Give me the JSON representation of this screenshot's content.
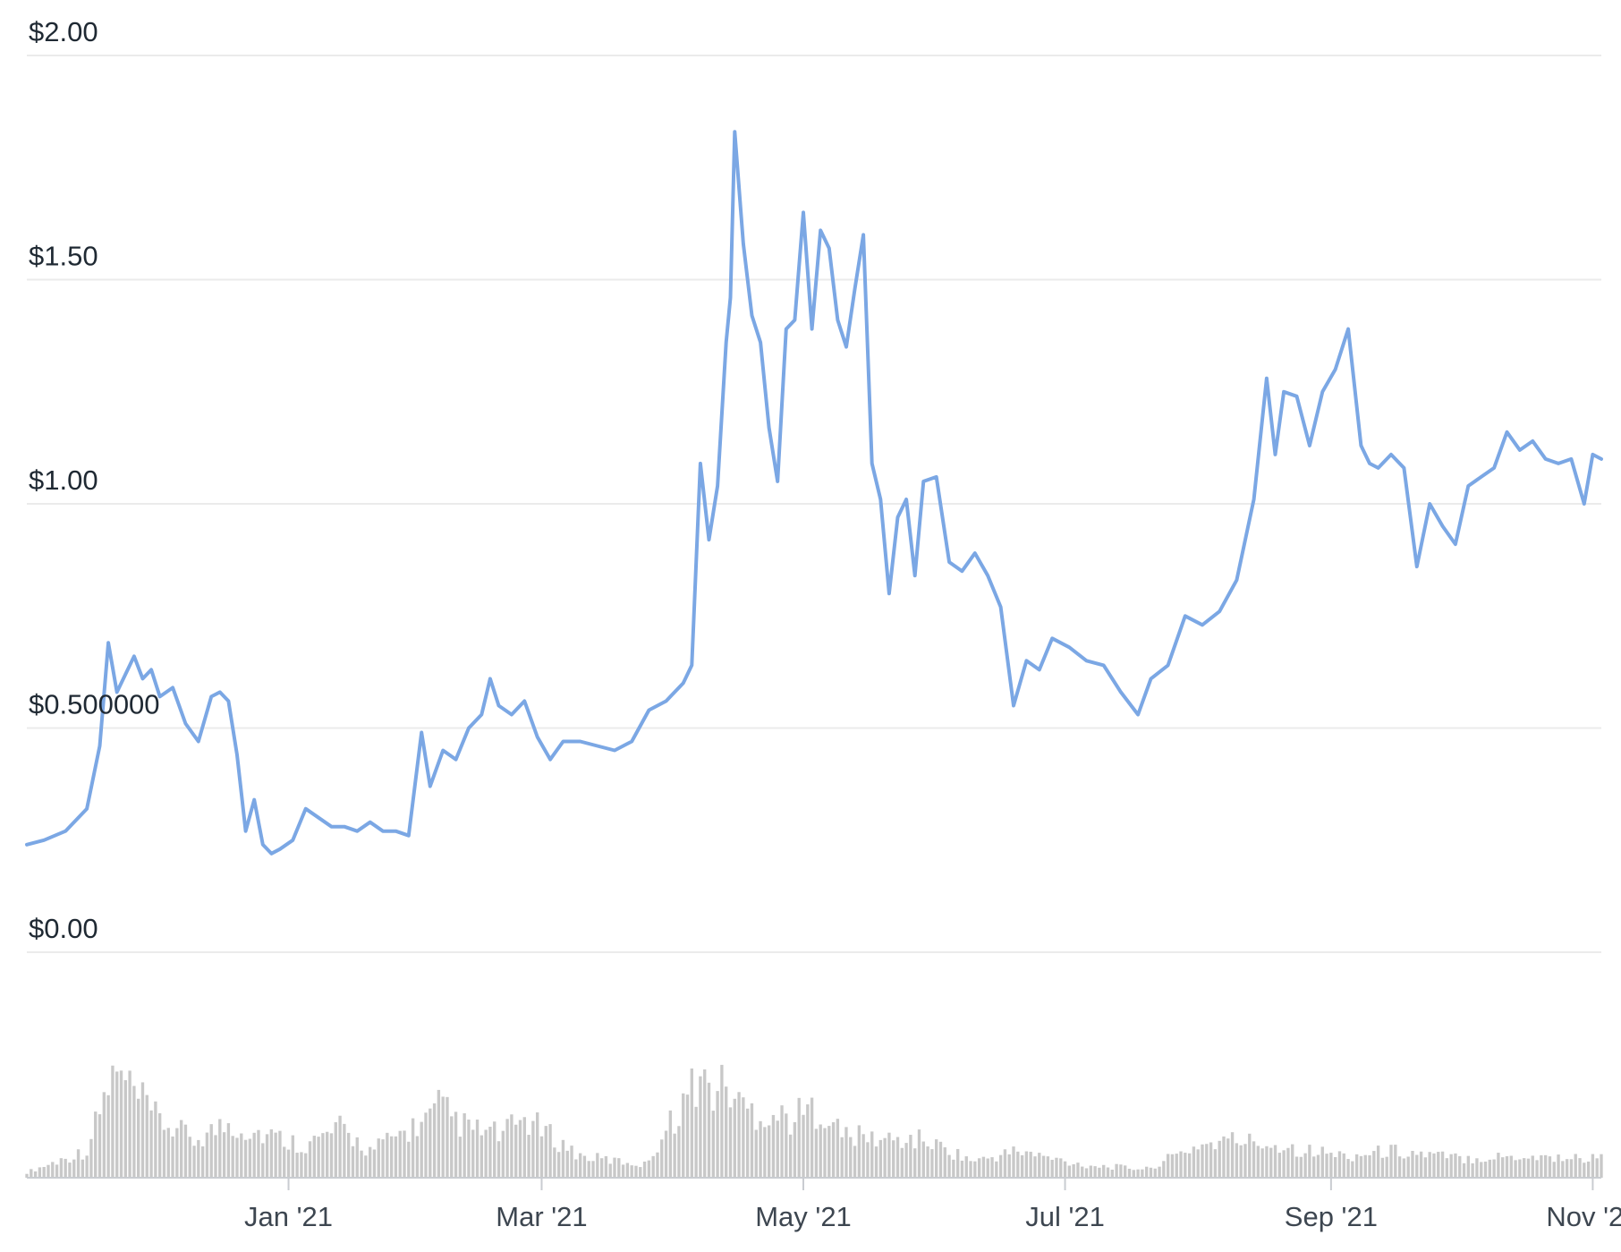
{
  "chart_data": {
    "type": "line",
    "title": "",
    "xlabel": "",
    "ylabel": "",
    "y_ticks": [
      {
        "value": 2.0,
        "label": "$2.00"
      },
      {
        "value": 1.5,
        "label": "$1.50"
      },
      {
        "value": 1.0,
        "label": "$1.00"
      },
      {
        "value": 0.5,
        "label": "$0.500000"
      },
      {
        "value": 0.0,
        "label": "$0.00"
      }
    ],
    "x_ticks": [
      {
        "date": "2021-01-01",
        "label": "Jan '21"
      },
      {
        "date": "2021-03-01",
        "label": "Mar '21"
      },
      {
        "date": "2021-05-01",
        "label": "May '21"
      },
      {
        "date": "2021-07-01",
        "label": "Jul '21"
      },
      {
        "date": "2021-09-01",
        "label": "Sep '21"
      },
      {
        "date": "2021-11-01",
        "label": "Nov '21"
      }
    ],
    "ylim": [
      0,
      2.0
    ],
    "xlim": [
      "2020-11-01",
      "2021-11-03"
    ],
    "grid": true,
    "colors": {
      "price_line": "#7ba7e4",
      "volume_bars": "#c8c8c8",
      "gridline": "#ebebeb",
      "tick_text": "#1f2933"
    },
    "series": [
      {
        "x": [
          "2020-11-01",
          "2020-11-05",
          "2020-11-10",
          "2020-11-15",
          "2020-11-18",
          "2020-11-20",
          "2020-11-22",
          "2020-11-24",
          "2020-11-26",
          "2020-11-28",
          "2020-11-30",
          "2020-12-02",
          "2020-12-05",
          "2020-12-08",
          "2020-12-11",
          "2020-12-14",
          "2020-12-16",
          "2020-12-18",
          "2020-12-20",
          "2020-12-22",
          "2020-12-24",
          "2020-12-26",
          "2020-12-28",
          "2020-12-30",
          "2021-01-02",
          "2021-01-05",
          "2021-01-08",
          "2021-01-11",
          "2021-01-14",
          "2021-01-17",
          "2021-01-20",
          "2021-01-23",
          "2021-01-26",
          "2021-01-29",
          "2021-02-01",
          "2021-02-03",
          "2021-02-06",
          "2021-02-09",
          "2021-02-12",
          "2021-02-15",
          "2021-02-17",
          "2021-02-19",
          "2021-02-22",
          "2021-02-25",
          "2021-02-28",
          "2021-03-03",
          "2021-03-06",
          "2021-03-10",
          "2021-03-14",
          "2021-03-18",
          "2021-03-22",
          "2021-03-26",
          "2021-03-30",
          "2021-04-01",
          "2021-04-03",
          "2021-04-05",
          "2021-04-07",
          "2021-04-09",
          "2021-04-11",
          "2021-04-13",
          "2021-04-14",
          "2021-04-15",
          "2021-04-17",
          "2021-04-19",
          "2021-04-21",
          "2021-04-23",
          "2021-04-25",
          "2021-04-27",
          "2021-04-29",
          "2021-05-01",
          "2021-05-03",
          "2021-05-05",
          "2021-05-07",
          "2021-05-09",
          "2021-05-11",
          "2021-05-13",
          "2021-05-15",
          "2021-05-17",
          "2021-05-19",
          "2021-05-21",
          "2021-05-23",
          "2021-05-25",
          "2021-05-27",
          "2021-05-29",
          "2021-06-01",
          "2021-06-04",
          "2021-06-07",
          "2021-06-10",
          "2021-06-13",
          "2021-06-16",
          "2021-06-19",
          "2021-06-22",
          "2021-06-25",
          "2021-06-28",
          "2021-07-02",
          "2021-07-06",
          "2021-07-10",
          "2021-07-14",
          "2021-07-18",
          "2021-07-21",
          "2021-07-25",
          "2021-07-29",
          "2021-08-02",
          "2021-08-06",
          "2021-08-10",
          "2021-08-14",
          "2021-08-17",
          "2021-08-19",
          "2021-08-21",
          "2021-08-24",
          "2021-08-27",
          "2021-08-30",
          "2021-09-02",
          "2021-09-05",
          "2021-09-08",
          "2021-09-10",
          "2021-09-12",
          "2021-09-15",
          "2021-09-18",
          "2021-09-21",
          "2021-09-24",
          "2021-09-27",
          "2021-09-30",
          "2021-10-03",
          "2021-10-06",
          "2021-10-09",
          "2021-10-12",
          "2021-10-15",
          "2021-10-18",
          "2021-10-21",
          "2021-10-24",
          "2021-10-27",
          "2021-10-30",
          "2021-11-01",
          "2021-11-03"
        ],
        "y": [
          0.24,
          0.25,
          0.27,
          0.32,
          0.46,
          0.69,
          0.58,
          0.62,
          0.66,
          0.61,
          0.63,
          0.57,
          0.59,
          0.51,
          0.47,
          0.57,
          0.58,
          0.56,
          0.44,
          0.27,
          0.34,
          0.24,
          0.22,
          0.23,
          0.25,
          0.32,
          0.3,
          0.28,
          0.28,
          0.27,
          0.29,
          0.27,
          0.27,
          0.26,
          0.49,
          0.37,
          0.45,
          0.43,
          0.5,
          0.53,
          0.61,
          0.55,
          0.53,
          0.56,
          0.48,
          0.43,
          0.47,
          0.47,
          0.46,
          0.45,
          0.47,
          0.54,
          0.56,
          0.58,
          0.6,
          0.64,
          1.09,
          0.92,
          1.04,
          1.36,
          1.46,
          1.83,
          1.58,
          1.42,
          1.36,
          1.17,
          1.05,
          1.39,
          1.41,
          1.65,
          1.39,
          1.61,
          1.57,
          1.41,
          1.35,
          1.48,
          1.6,
          1.09,
          1.01,
          0.8,
          0.97,
          1.01,
          0.84,
          1.05,
          1.06,
          0.87,
          0.85,
          0.89,
          0.84,
          0.77,
          0.55,
          0.65,
          0.63,
          0.7,
          0.68,
          0.65,
          0.64,
          0.58,
          0.53,
          0.61,
          0.64,
          0.75,
          0.73,
          0.76,
          0.83,
          1.01,
          1.28,
          1.11,
          1.25,
          1.24,
          1.13,
          1.25,
          1.3,
          1.39,
          1.13,
          1.09,
          1.08,
          1.11,
          1.08,
          0.86,
          1.0,
          0.95,
          0.91,
          1.04,
          1.06,
          1.08,
          1.16,
          1.12,
          1.14,
          1.1,
          1.09,
          1.1,
          1.0,
          1.11,
          1.1
        ]
      }
    ],
    "volume": {
      "x": [
        "2020-11-01",
        "2020-11-15",
        "2020-11-20",
        "2020-11-22",
        "2020-12-01",
        "2020-12-10",
        "2020-12-18",
        "2020-12-22",
        "2021-01-05",
        "2021-01-13",
        "2021-01-20",
        "2021-02-03",
        "2021-02-05",
        "2021-02-12",
        "2021-02-20",
        "2021-02-25",
        "2021-03-10",
        "2021-03-25",
        "2021-04-07",
        "2021-04-09",
        "2021-04-13",
        "2021-04-15",
        "2021-04-17",
        "2021-04-21",
        "2021-04-28",
        "2021-05-05",
        "2021-05-10",
        "2021-05-20",
        "2021-05-29",
        "2021-06-10",
        "2021-06-20",
        "2021-06-25",
        "2021-07-05",
        "2021-07-20",
        "2021-08-01",
        "2021-08-10",
        "2021-08-20",
        "2021-08-27",
        "2021-09-05",
        "2021-09-15",
        "2021-10-01",
        "2021-10-15",
        "2021-10-30"
      ],
      "values": [
        0.05,
        0.25,
        0.85,
        0.95,
        0.55,
        0.35,
        0.5,
        0.45,
        0.3,
        0.45,
        0.25,
        0.55,
        0.65,
        0.45,
        0.4,
        0.55,
        0.2,
        0.12,
        0.95,
        0.8,
        0.85,
        0.75,
        0.65,
        0.6,
        0.55,
        0.65,
        0.4,
        0.35,
        0.35,
        0.15,
        0.25,
        0.2,
        0.12,
        0.08,
        0.3,
        0.35,
        0.3,
        0.25,
        0.2,
        0.25,
        0.18,
        0.2,
        0.18
      ]
    }
  }
}
